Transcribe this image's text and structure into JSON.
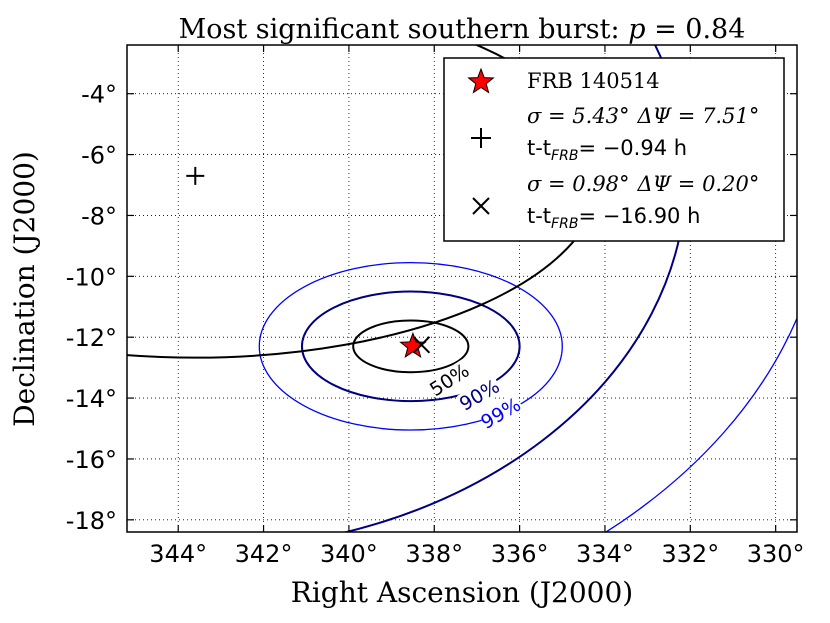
{
  "chart_data": {
    "type": "scatter",
    "title": "Most significant southern burst: p = 0.84",
    "title_prefix": "Most significant southern burst: ",
    "title_var": "p",
    "title_eq": " = 0.84",
    "xlabel": "Right Ascension (J2000)",
    "ylabel": "Declination (J2000)",
    "xlim": [
      345.2,
      329.5
    ],
    "ylim": [
      -18.4,
      -2.4
    ],
    "x_ticks": [
      344,
      342,
      340,
      338,
      336,
      334,
      332,
      330
    ],
    "x_tick_labels": [
      "344°",
      "342°",
      "340°",
      "338°",
      "336°",
      "334°",
      "332°",
      "330°"
    ],
    "y_ticks": [
      -4,
      -6,
      -8,
      -10,
      -12,
      -14,
      -16,
      -18
    ],
    "y_tick_labels": [
      "-4°",
      "-6°",
      "-8°",
      "-10°",
      "-12°",
      "-14°",
      "-16°",
      "-18°"
    ],
    "grid": true,
    "legend_position": "top-right",
    "frb": {
      "ra": 338.5,
      "dec": -12.3,
      "label": "FRB 140514",
      "color": "#ff0000"
    },
    "confidence_contours": [
      {
        "label": "50%",
        "rx_deg": 1.35,
        "ry_deg": 0.85,
        "color": "#000000"
      },
      {
        "label": "90%",
        "rx_deg": 2.55,
        "ry_deg": 1.8,
        "color": "#000080"
      },
      {
        "label": "99%",
        "rx_deg": 3.55,
        "ry_deg": 2.75,
        "color": "#0000ff"
      }
    ],
    "bursts": [
      {
        "marker": "+",
        "ra": 343.6,
        "dec": -6.7,
        "sigma": "σ = 5.43°",
        "dpsi": "ΔΨ = 7.51°",
        "dt": "t-t_FRB = −0.94 h",
        "dt_value": "= −0.94 h",
        "color": "#000000"
      },
      {
        "marker": "x",
        "ra": 338.3,
        "dec": -12.25,
        "sigma": "σ = 0.98°",
        "dpsi": "ΔΨ = 0.20°",
        "dt": "t-t_FRB = −16.90 h",
        "dt_value": "= −16.90 h",
        "color": "#000000"
      }
    ],
    "dt_prefix": "t-t",
    "dt_subscript": "FRB"
  }
}
